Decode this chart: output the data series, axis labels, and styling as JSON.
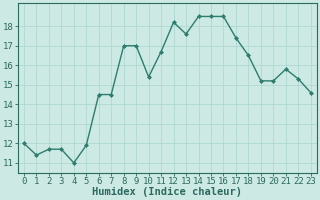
{
  "x": [
    0,
    1,
    2,
    3,
    4,
    5,
    6,
    7,
    8,
    9,
    10,
    11,
    12,
    13,
    14,
    15,
    16,
    17,
    18,
    19,
    20,
    21,
    22,
    23
  ],
  "y": [
    12.0,
    11.4,
    11.7,
    11.7,
    11.0,
    11.9,
    14.5,
    14.5,
    17.0,
    17.0,
    15.4,
    16.7,
    18.2,
    17.6,
    18.5,
    18.5,
    18.5,
    17.4,
    16.5,
    15.2,
    15.2,
    15.8,
    15.3,
    14.6
  ],
  "line_color": "#2d7d6e",
  "marker": "D",
  "marker_size": 2.0,
  "bg_color": "#cce9e4",
  "grid_color": "#b0d8d2",
  "xlabel": "Humidex (Indice chaleur)",
  "ylim": [
    10.5,
    19.2
  ],
  "yticks": [
    11,
    12,
    13,
    14,
    15,
    16,
    17,
    18
  ],
  "xticks": [
    0,
    1,
    2,
    3,
    4,
    5,
    6,
    7,
    8,
    9,
    10,
    11,
    12,
    13,
    14,
    15,
    16,
    17,
    18,
    19,
    20,
    21,
    22,
    23
  ],
  "xlim": [
    -0.5,
    23.5
  ],
  "tick_fontsize": 6.5,
  "xlabel_fontsize": 7.5,
  "label_color": "#2d6a5e",
  "linewidth": 1.0
}
